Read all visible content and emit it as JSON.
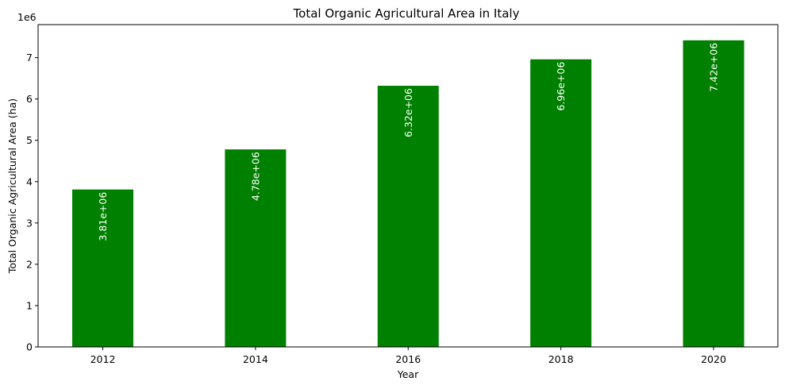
{
  "chart_data": {
    "type": "bar",
    "title": "Total Organic Agricultural Area in Italy",
    "xlabel": "Year",
    "ylabel": "Total Organic Agricultural Area (ha)",
    "y_offset_label": "1e6",
    "categories": [
      "2012",
      "2014",
      "2016",
      "2018",
      "2020"
    ],
    "values": [
      3810000,
      4780000,
      6320000,
      6960000,
      7420000
    ],
    "data_labels": [
      "3.81e+06",
      "4.78e+06",
      "6.32e+06",
      "6.96e+06",
      "7.42e+06"
    ],
    "y_ticks": [
      0,
      1,
      2,
      3,
      4,
      5,
      6,
      7
    ],
    "y_tick_scale": 1000000,
    "ylim": [
      0,
      7800000
    ],
    "x_ticks": [
      "2012",
      "2014",
      "2016",
      "2018",
      "2020"
    ],
    "bar_color": "#008000",
    "grid": false,
    "legend": "none"
  }
}
